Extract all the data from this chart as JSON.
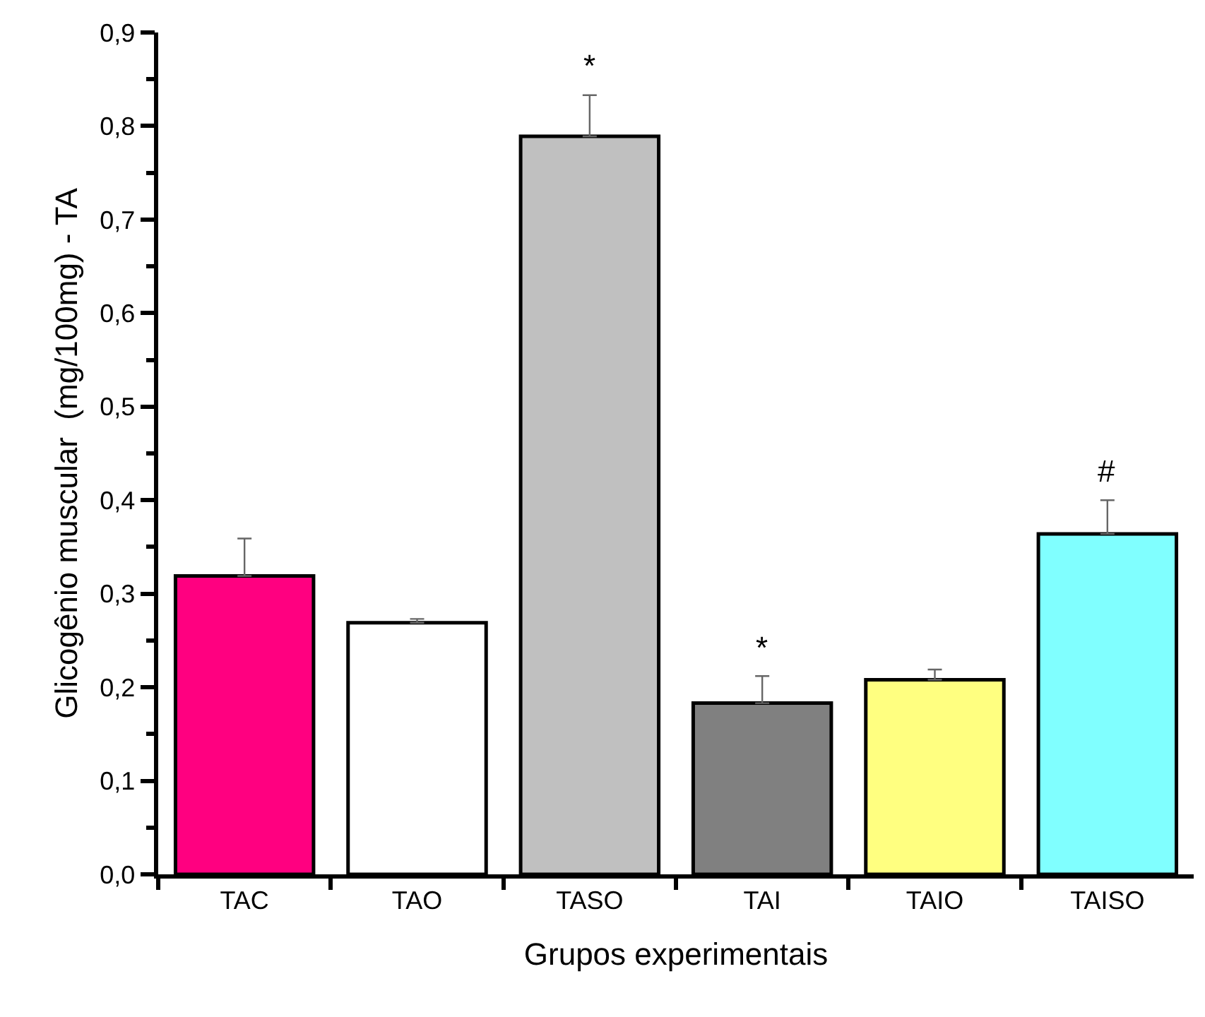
{
  "chart_data": {
    "type": "bar",
    "xlabel": "Grupos experimentais",
    "ylabel": "Glicogênio muscular  (mg/100mg) - TA",
    "categories": [
      "TAC",
      "TAO",
      "TASO",
      "TAI",
      "TAIO",
      "TAISO"
    ],
    "values": [
      0.319,
      0.269,
      0.789,
      0.183,
      0.208,
      0.364
    ],
    "colors": [
      "#ff0080",
      "#ffffff",
      "#c0c0c0",
      "#808080",
      "#ffff80",
      "#80ffff"
    ],
    "errors": [
      [
        0.319,
        0.359
      ],
      [
        0.269,
        0.273
      ],
      [
        0.789,
        0.833
      ],
      [
        0.183,
        0.212
      ],
      [
        0.208,
        0.219
      ],
      [
        0.364,
        0.4
      ]
    ],
    "ylim": [
      0,
      0.9
    ],
    "yticks": [
      {
        "value": 0,
        "label": "0,0"
      },
      {
        "value": 0.1,
        "label": "0,1"
      },
      {
        "value": 0.2,
        "label": "0,2"
      },
      {
        "value": 0.3,
        "label": "0,3"
      },
      {
        "value": 0.4,
        "label": "0,4"
      },
      {
        "value": 0.5,
        "label": "0,5"
      },
      {
        "value": 0.6,
        "label": "0,6"
      },
      {
        "value": 0.7,
        "label": "0,7"
      },
      {
        "value": 0.8,
        "label": "0,8"
      },
      {
        "value": 0.9,
        "label": "0,9"
      }
    ],
    "annotations": [
      {
        "text": "*",
        "x": "TASO",
        "y": 0.833
      },
      {
        "text": "*",
        "x": "TAI",
        "y": 0.212
      },
      {
        "text": "#",
        "x": "TAISO",
        "y": 0.4
      }
    ]
  }
}
